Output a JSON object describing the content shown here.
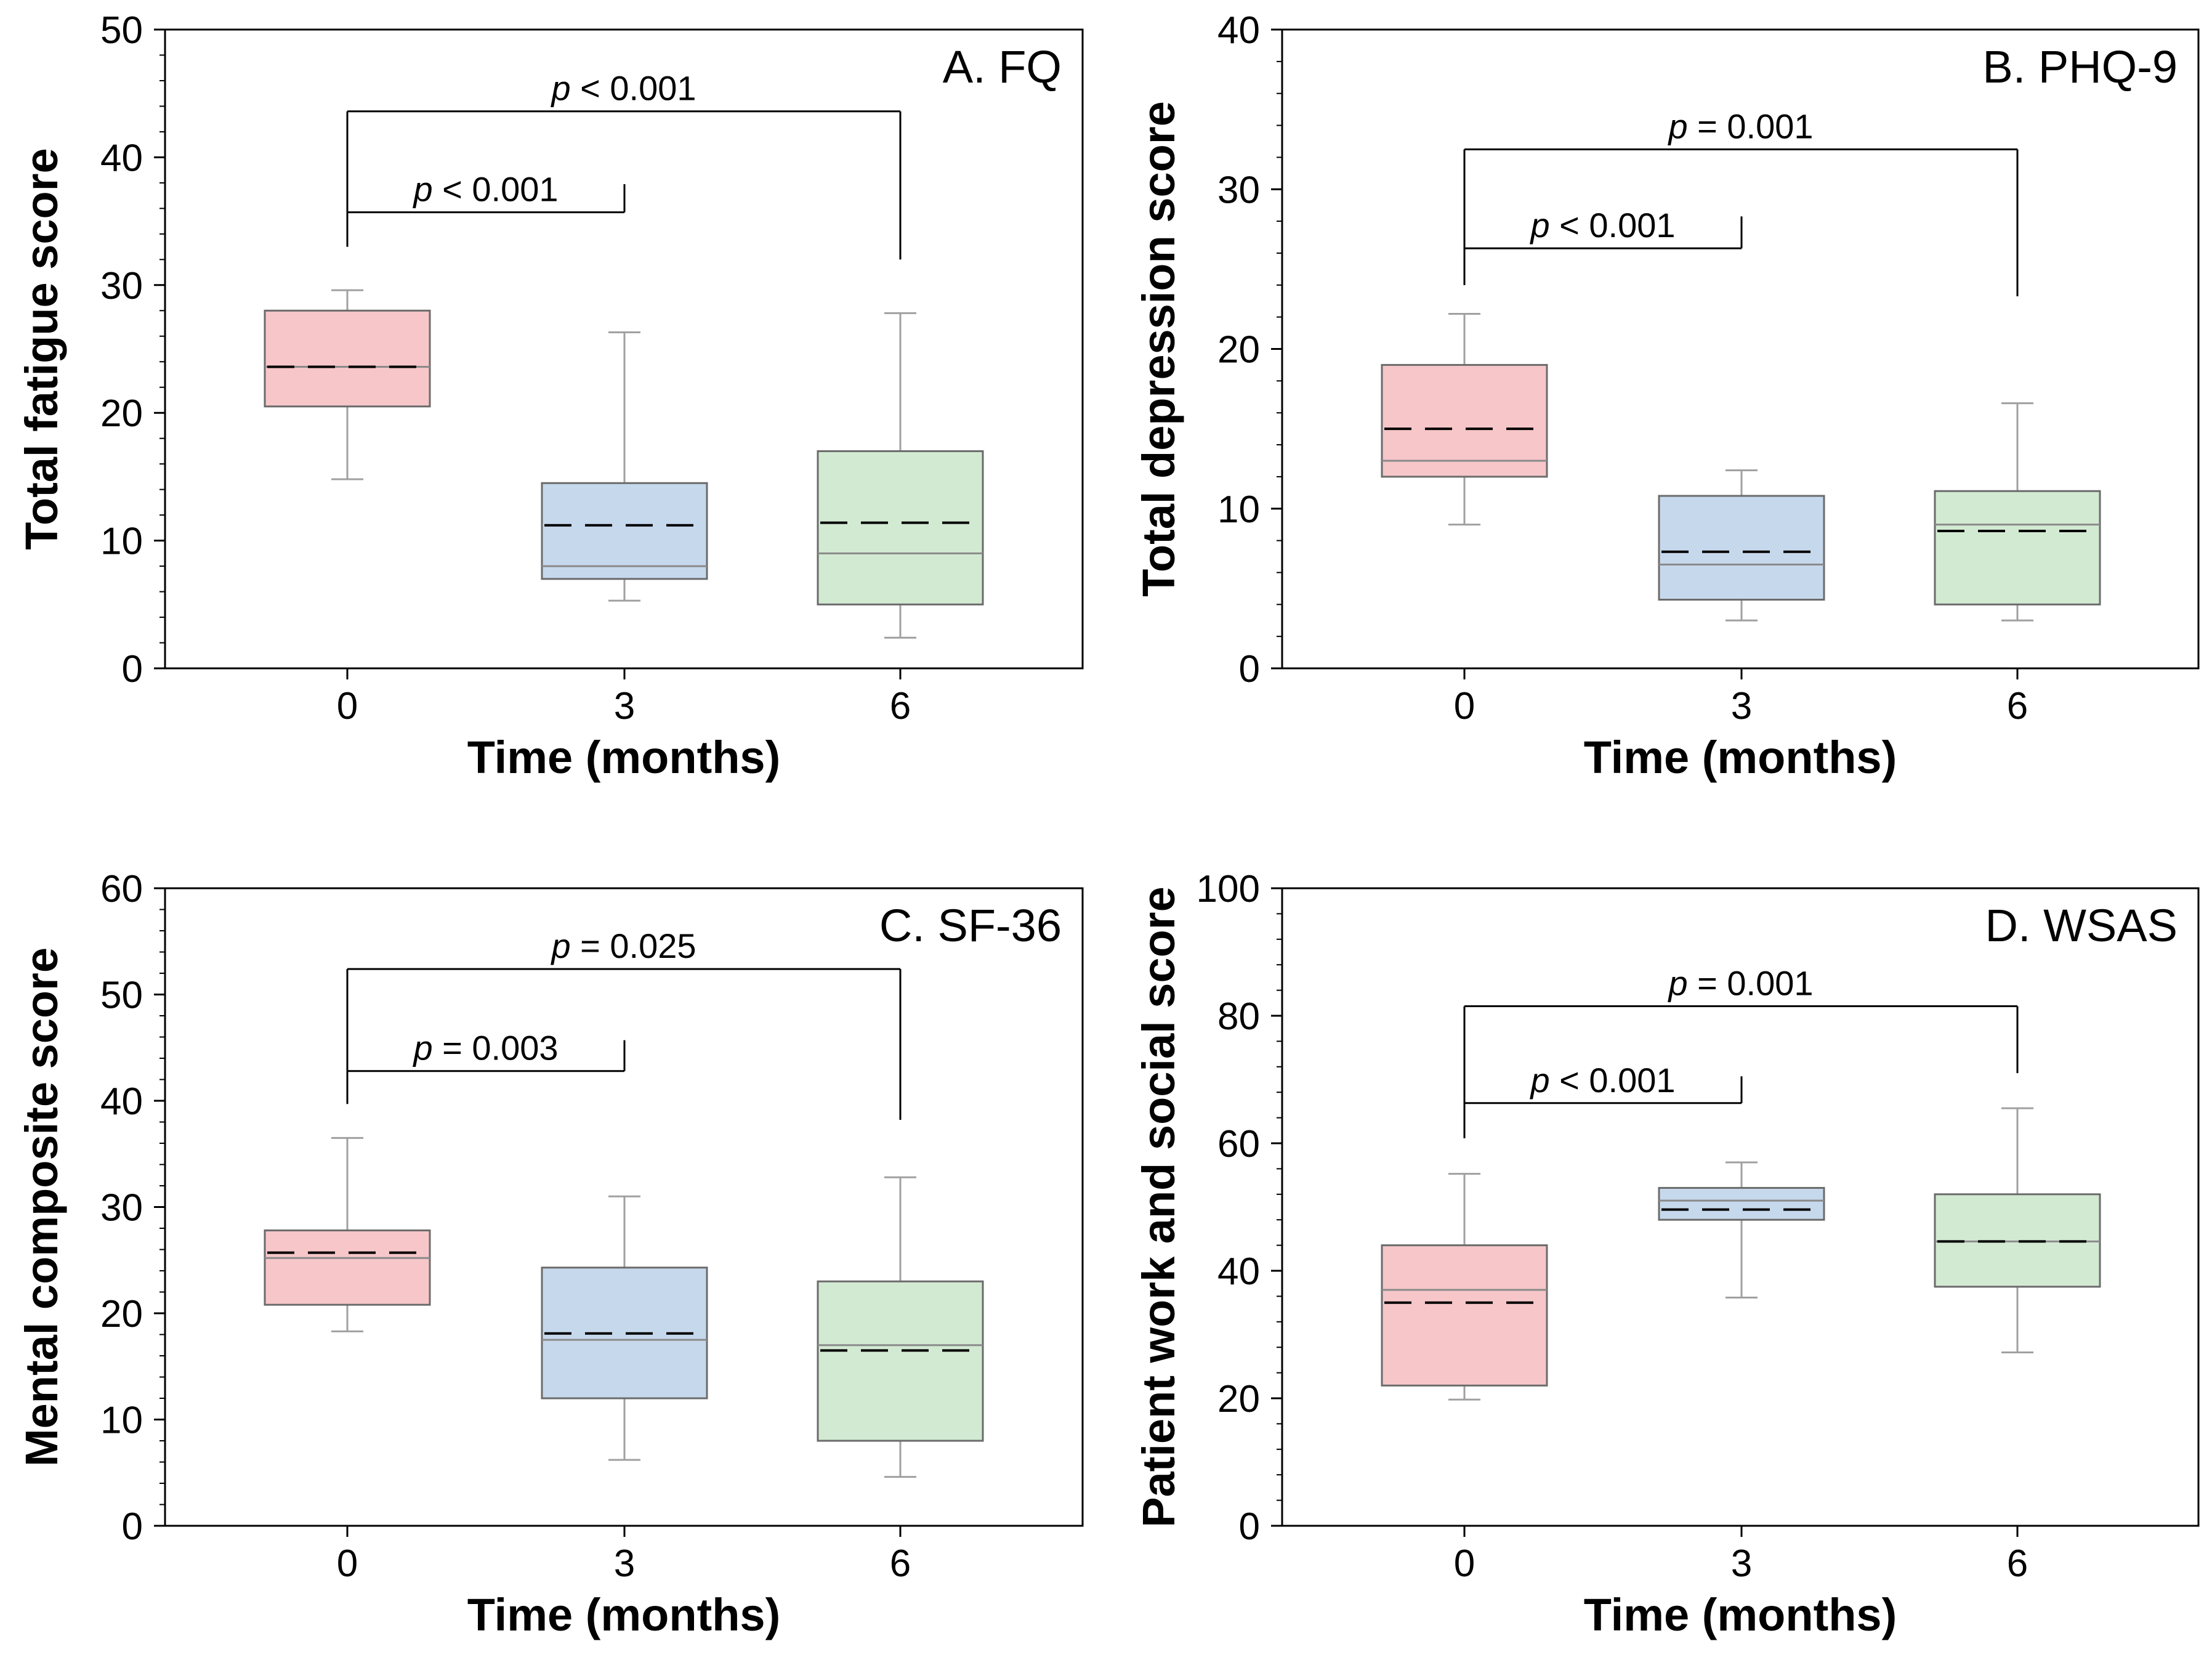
{
  "chart_data": [
    {
      "type": "box",
      "panel_label": "A. FQ",
      "xlabel": "Time (months)",
      "ylabel": "Total fatigue score",
      "ylim": [
        0,
        50
      ],
      "yticks": [
        0,
        10,
        20,
        30,
        40,
        50
      ],
      "categories": [
        "0",
        "3",
        "6"
      ],
      "boxes": [
        {
          "category": "0",
          "whisker_low": 14.8,
          "q1": 20.5,
          "median": 23.6,
          "mean": 23.6,
          "q3": 28.0,
          "whisker_high": 29.6
        },
        {
          "category": "3",
          "whisker_low": 5.3,
          "q1": 7.0,
          "median": 8.0,
          "mean": 11.2,
          "q3": 14.5,
          "whisker_high": 26.3
        },
        {
          "category": "6",
          "whisker_low": 2.4,
          "q1": 5.0,
          "median": 9.0,
          "mean": 11.4,
          "q3": 17.0,
          "whisker_high": 27.8
        }
      ],
      "comparisons": [
        {
          "from": "0",
          "to": "3",
          "bar_y": 35.7,
          "left_drop_y": 33.0,
          "right_drop_y": 37.9,
          "text_prefix": "p",
          "text": " < 0.001"
        },
        {
          "from": "0",
          "to": "6",
          "bar_y": 43.6,
          "left_drop_y": 33.0,
          "right_drop_y": 32.0,
          "text_prefix": "p",
          "text": " < 0.001"
        }
      ]
    },
    {
      "type": "box",
      "panel_label": "B. PHQ-9",
      "xlabel": "Time (months)",
      "ylabel": "Total depression score",
      "ylim": [
        0,
        40
      ],
      "yticks": [
        0,
        10,
        20,
        30,
        40
      ],
      "categories": [
        "0",
        "3",
        "6"
      ],
      "boxes": [
        {
          "category": "0",
          "whisker_low": 9.0,
          "q1": 12.0,
          "median": 13.0,
          "mean": 15.0,
          "q3": 19.0,
          "whisker_high": 22.2
        },
        {
          "category": "3",
          "whisker_low": 3.0,
          "q1": 4.3,
          "median": 6.5,
          "mean": 7.3,
          "q3": 10.8,
          "whisker_high": 12.4
        },
        {
          "category": "6",
          "whisker_low": 3.0,
          "q1": 4.0,
          "median": 9.0,
          "mean": 8.6,
          "q3": 11.1,
          "whisker_high": 16.6
        }
      ],
      "comparisons": [
        {
          "from": "0",
          "to": "3",
          "bar_y": 26.3,
          "left_drop_y": 24.0,
          "right_drop_y": 28.3,
          "text_prefix": "p",
          "text": " < 0.001"
        },
        {
          "from": "0",
          "to": "6",
          "bar_y": 32.5,
          "left_drop_y": 24.0,
          "right_drop_y": 23.3,
          "text_prefix": "p",
          "text": " = 0.001"
        }
      ]
    },
    {
      "type": "box",
      "panel_label": "C. SF-36",
      "xlabel": "Time (months)",
      "ylabel": "Mental composite score",
      "ylim": [
        0,
        60
      ],
      "yticks": [
        0,
        10,
        20,
        30,
        40,
        50,
        60
      ],
      "categories": [
        "0",
        "3",
        "6"
      ],
      "boxes": [
        {
          "category": "0",
          "whisker_low": 18.3,
          "q1": 20.8,
          "median": 25.2,
          "mean": 25.7,
          "q3": 27.8,
          "whisker_high": 36.5
        },
        {
          "category": "3",
          "whisker_low": 6.2,
          "q1": 12.0,
          "median": 17.5,
          "mean": 18.1,
          "q3": 24.3,
          "whisker_high": 31.0
        },
        {
          "category": "6",
          "whisker_low": 4.6,
          "q1": 8.0,
          "median": 17.0,
          "mean": 16.5,
          "q3": 23.0,
          "whisker_high": 32.8
        }
      ],
      "comparisons": [
        {
          "from": "0",
          "to": "3",
          "bar_y": 42.8,
          "left_drop_y": 39.7,
          "right_drop_y": 45.7,
          "text_prefix": "p",
          "text": " = 0.003"
        },
        {
          "from": "0",
          "to": "6",
          "bar_y": 52.4,
          "left_drop_y": 39.7,
          "right_drop_y": 38.2,
          "text_prefix": "p",
          "text": " = 0.025"
        }
      ]
    },
    {
      "type": "box",
      "panel_label": "D. WSAS",
      "xlabel": "Time (months)",
      "ylabel": "Patient work and social score",
      "ylim": [
        0,
        100
      ],
      "yticks": [
        0,
        20,
        40,
        60,
        80,
        100
      ],
      "categories": [
        "0",
        "3",
        "6"
      ],
      "boxes": [
        {
          "category": "0",
          "whisker_low": 19.8,
          "q1": 22.0,
          "median": 37.0,
          "mean": 35.0,
          "q3": 44.0,
          "whisker_high": 55.2
        },
        {
          "category": "3",
          "whisker_low": 35.8,
          "q1": 48.0,
          "median": 51.0,
          "mean": 49.6,
          "q3": 53.0,
          "whisker_high": 57.0
        },
        {
          "category": "6",
          "whisker_low": 27.2,
          "q1": 37.5,
          "median": 44.6,
          "mean": 44.6,
          "q3": 52.0,
          "whisker_high": 65.5
        }
      ],
      "comparisons": [
        {
          "from": "0",
          "to": "3",
          "bar_y": 66.3,
          "left_drop_y": 60.8,
          "right_drop_y": 70.5,
          "text_prefix": "p",
          "text": " < 0.001"
        },
        {
          "from": "0",
          "to": "6",
          "bar_y": 81.5,
          "left_drop_y": 60.8,
          "right_drop_y": 71.0,
          "text_prefix": "p",
          "text": " = 0.001"
        }
      ]
    }
  ],
  "colors": {
    "box_fills": [
      "#f6c6c9",
      "#c6d8ec",
      "#d2ead2"
    ],
    "box_stroke": "#6b6b6b",
    "whisker": "#a0a0a0",
    "median_line": "#8a8a8a",
    "mean_line": "#000000",
    "axis": "#000000"
  }
}
